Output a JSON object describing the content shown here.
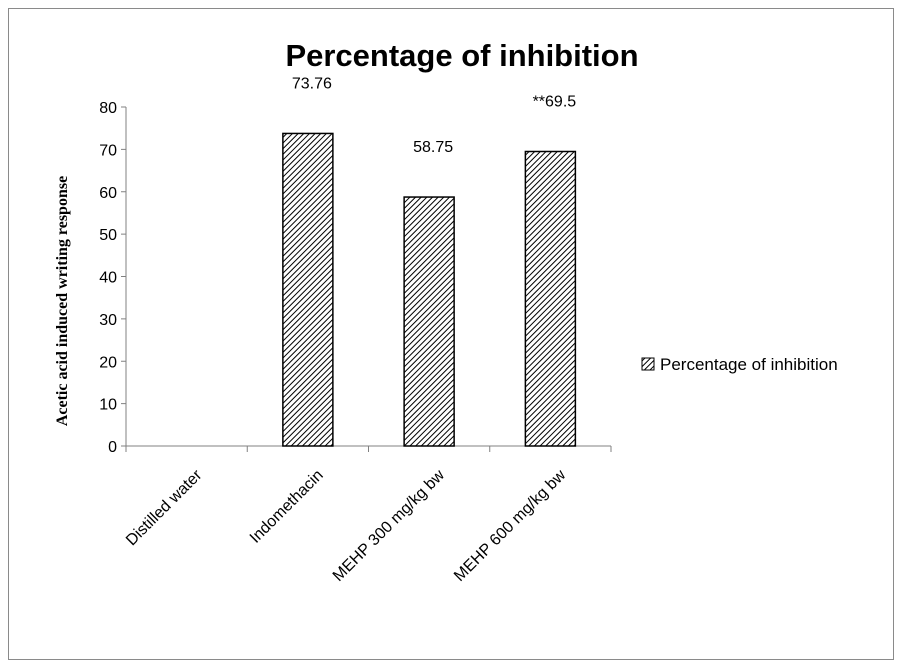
{
  "chart_data": {
    "type": "bar",
    "title": "Percentage of inhibition",
    "xlabel": "",
    "ylabel": "Acetic acid induced writing response",
    "categories": [
      "Distilled water",
      "Indomethacin",
      "MEHP 300 mg/kg bw",
      "MEHP 600 mg/kg bw"
    ],
    "series": [
      {
        "name": "Percentage of inhibition",
        "values": [
          0,
          73.76,
          58.75,
          69.5
        ],
        "labels": [
          "",
          "73.76",
          "58.75",
          "**69.5"
        ]
      }
    ],
    "ylim": [
      0,
      80
    ],
    "yticks": [
      "0",
      "10",
      "20",
      "30",
      "40",
      "50",
      "60",
      "70",
      "80"
    ],
    "grid": false,
    "legend_position": "right",
    "bar_pattern": "diagonal-hatch",
    "colors": {
      "bar_fill": "#ffffff",
      "hatch": "#000000",
      "axis": "#808080"
    }
  }
}
